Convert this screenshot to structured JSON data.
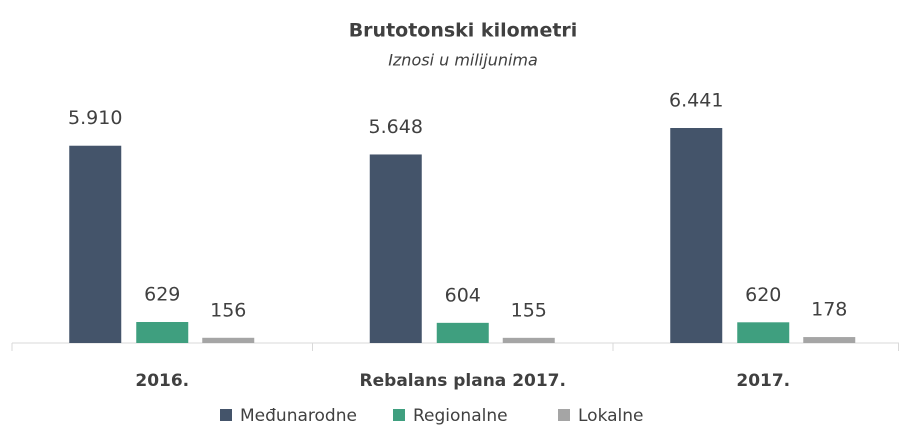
{
  "chart_data": {
    "type": "bar",
    "title": "Brutotonski kilometri",
    "subtitle": "Iznosi u milijunima",
    "categories": [
      "2016.",
      "Rebalans plana 2017.",
      "2017."
    ],
    "series": [
      {
        "name": "Međunarodne",
        "color": "#44546a",
        "values": [
          5910,
          5648,
          6441
        ],
        "value_labels": [
          "5.910",
          "5.648",
          "6.441"
        ]
      },
      {
        "name": "Regionalne",
        "color": "#3f9f7f",
        "values": [
          629,
          604,
          620
        ]
      },
      {
        "name": "Lokalne",
        "color": "#a5a5a5",
        "values": [
          156,
          155,
          178
        ]
      }
    ],
    "legend": "bottom"
  }
}
